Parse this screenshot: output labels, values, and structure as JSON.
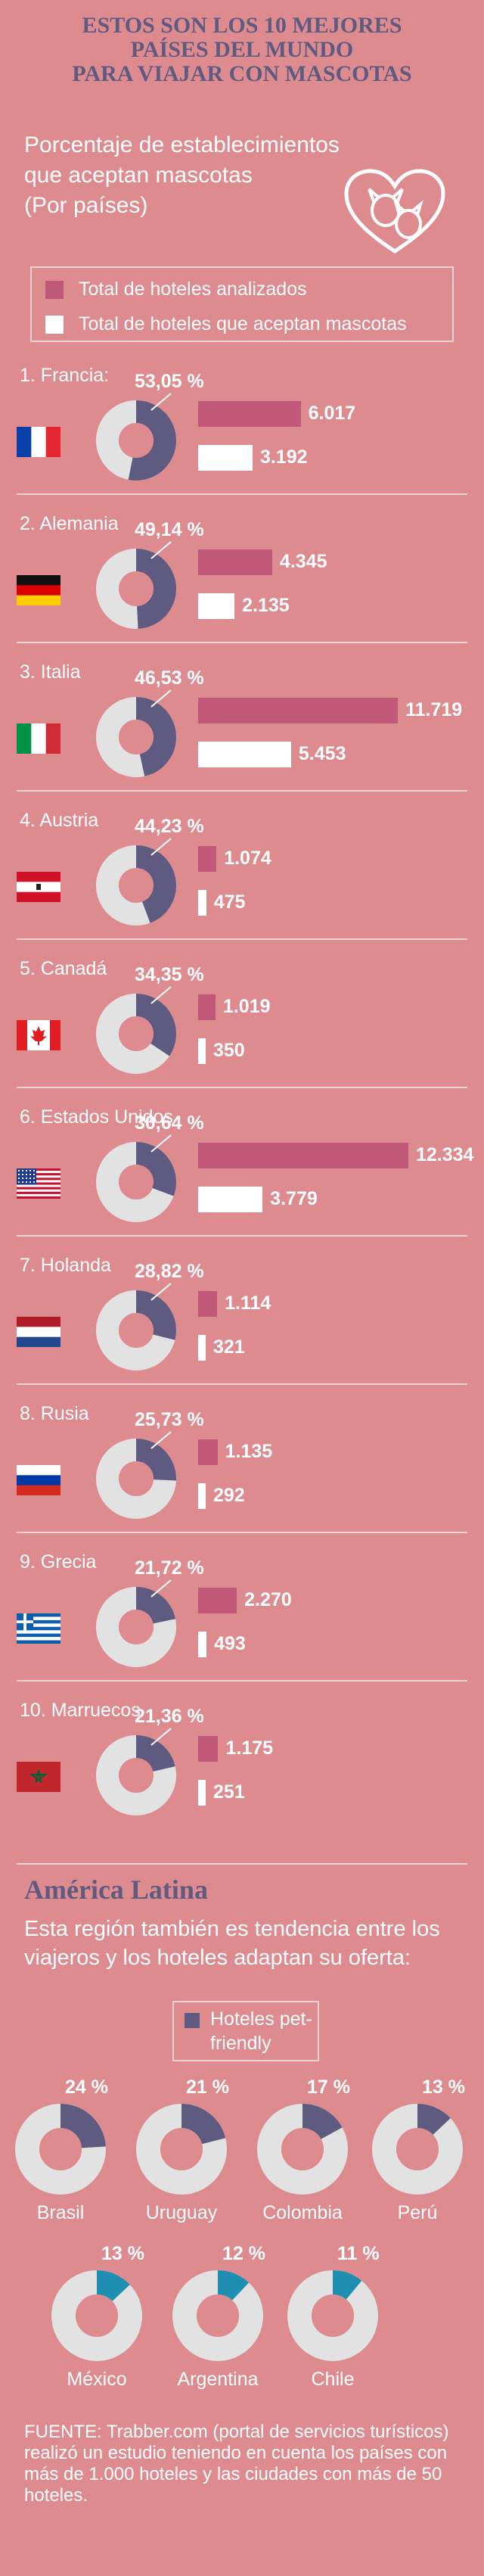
{
  "header": {
    "title_lines": [
      "Estos son los 10 mejores",
      "países del mundo",
      "para viajar con mascotas"
    ],
    "subtitle_lines": [
      "Porcentaje de establecimientos",
      "que aceptan mascotas",
      "(Por países)"
    ]
  },
  "legend": {
    "total_label": "Total de hoteles analizados",
    "pet_label": "Total de hoteles que aceptan mascotas"
  },
  "colors": {
    "background": "#de8b8f",
    "accent": "#5e5a80",
    "total_bar": "#c0587a",
    "pet_bar": "#ffffff",
    "donut_track": "#e2e2e2",
    "latam_highlight": "#1e8fb0"
  },
  "chart_data": [
    {
      "type": "bar",
      "categories": [
        "1. Francia:",
        "2. Alemania",
        "3. Italia",
        "4. Austria",
        "5. Canadá",
        "6. Estados Unidos",
        "7. Holanda",
        "8. Rusia",
        "9. Grecia",
        "10. Marruecos"
      ],
      "percent_labels": [
        "53,05 %",
        "49,14 %",
        "46,53 %",
        "44,23 %",
        "34,35 %",
        "30,64 %",
        "28,82 %",
        "25,73 %",
        "21,72 %",
        "21,36 %"
      ],
      "percent_values": [
        53.05,
        49.14,
        46.53,
        44.23,
        34.35,
        30.64,
        28.82,
        25.73,
        21.72,
        21.36
      ],
      "series": [
        {
          "name": "Total de hoteles analizados",
          "values": [
            6017,
            4345,
            11719,
            1074,
            1019,
            12334,
            1114,
            1135,
            2270,
            1175
          ],
          "labels": [
            "6.017",
            "4.345",
            "11.719",
            "1.074",
            "1.019",
            "12.334",
            "1.114",
            "1.135",
            "2.270",
            "1.175"
          ]
        },
        {
          "name": "Total de hoteles que aceptan mascotas",
          "values": [
            3192,
            2135,
            5453,
            475,
            350,
            3779,
            321,
            292,
            493,
            251
          ],
          "labels": [
            "3.192",
            "2.135",
            "5.453",
            "475",
            "350",
            "3.779",
            "321",
            "292",
            "493",
            "251"
          ]
        }
      ],
      "flags": [
        "france-flag",
        "germany-flag",
        "italy-flag",
        "austria-flag",
        "canada-flag",
        "usa-flag",
        "netherlands-flag",
        "russia-flag",
        "greece-flag",
        "morocco-flag"
      ]
    },
    {
      "type": "pie",
      "categories": [
        "Brasil",
        "Uruguay",
        "Colombia",
        "Perú",
        "México",
        "Argentina",
        "Chile"
      ],
      "percent_labels": [
        "24 %",
        "21 %",
        "17 %",
        "13 %",
        "13 %",
        "12 %",
        "11 %"
      ],
      "values": [
        24,
        21,
        17,
        13,
        13,
        12,
        11
      ]
    }
  ],
  "latam": {
    "title": "América Latina",
    "text": "Esta región también es tendencia entre los viajeros y los hoteles adaptan su oferta:",
    "legend_label": "Hoteles pet-friendly"
  },
  "source": "FUENTE: Trabber.com (portal de servicios turísticos) realizó un estudio teniendo en cuenta los países con más de 1.000 hoteles y las ciudades con más de 50 hoteles."
}
